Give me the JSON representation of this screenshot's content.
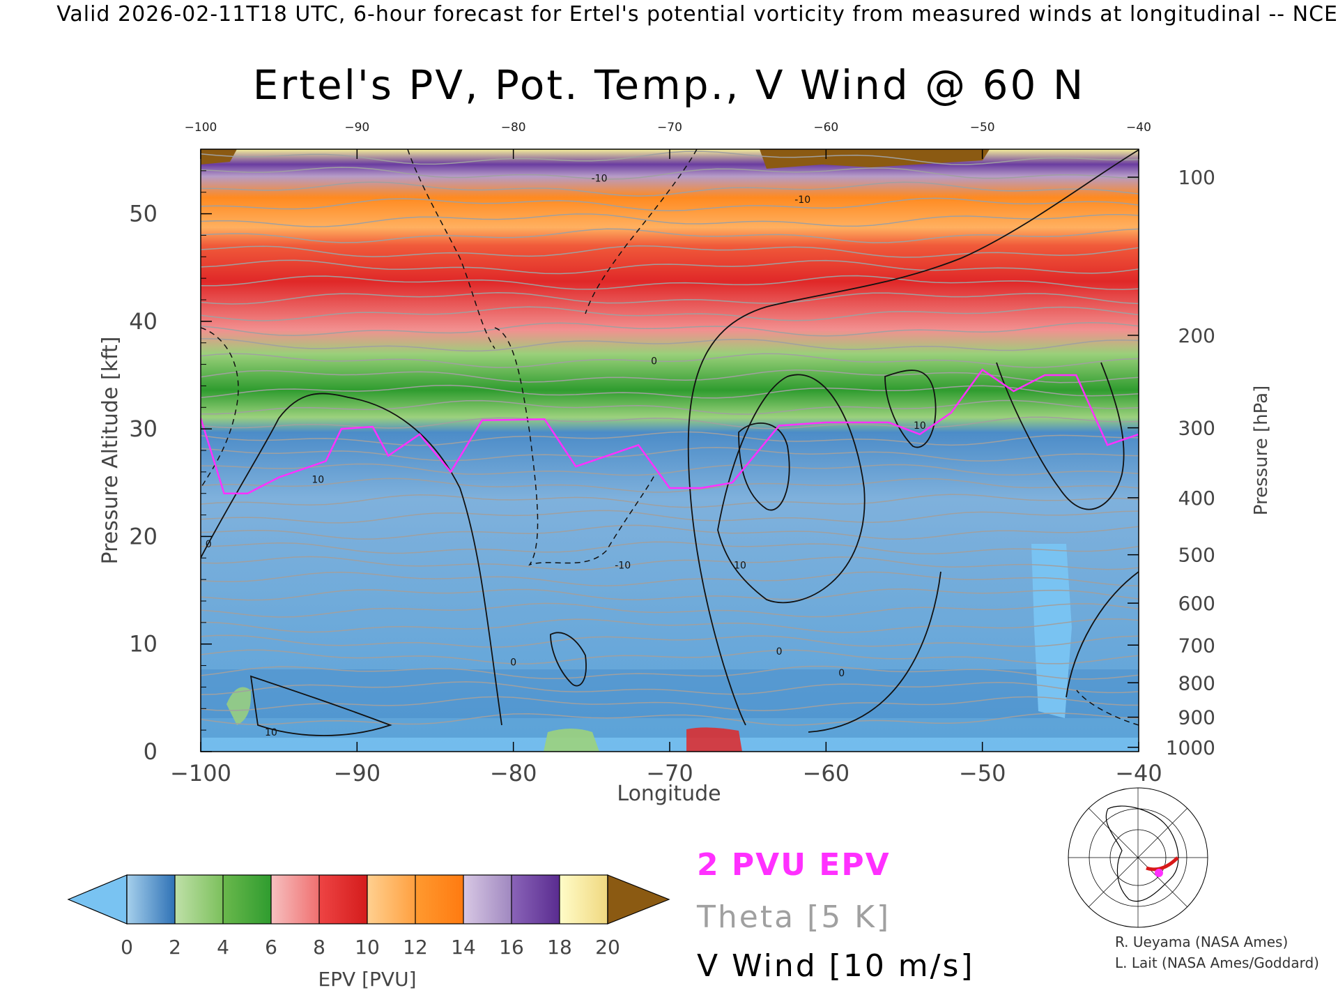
{
  "header": "Valid 2026-02-11T18 UTC, 6-hour forecast for Ertel's potential vorticity from measured winds at longitudinal -- NCE",
  "credits": [
    "R. Ueyama (NASA Ames)",
    "L. Lait (NASA Ames/Goddard)"
  ],
  "chart_data": {
    "type": "heatmap",
    "title": "Ertel's PV, Pot. Temp., V Wind @ 60 N",
    "xlabel": "Longitude",
    "ylabel_left": "Pressure Altitude [kft]",
    "ylabel_right": "Pressure [hPa]",
    "xlim": [
      -100,
      -40
    ],
    "ylim": [
      0,
      56
    ],
    "x_ticks": [
      -100,
      -90,
      -80,
      -70,
      -60,
      -50,
      -40
    ],
    "y_ticks": [
      0,
      10,
      20,
      30,
      40,
      50
    ],
    "pressure_ticks": [
      {
        "label": "100",
        "kft": 53.4
      },
      {
        "label": "200",
        "kft": 38.7
      },
      {
        "label": "300",
        "kft": 30.1
      },
      {
        "label": "400",
        "kft": 23.6
      },
      {
        "label": "500",
        "kft": 18.3
      },
      {
        "label": "600",
        "kft": 13.8
      },
      {
        "label": "700",
        "kft": 9.9
      },
      {
        "label": "800",
        "kft": 6.4
      },
      {
        "label": "900",
        "kft": 3.2
      },
      {
        "label": "1000",
        "kft": 0.4
      }
    ],
    "colorbar": {
      "label": "EPV [PVU]",
      "ticks": [
        0,
        2,
        4,
        6,
        8,
        10,
        12,
        14,
        16,
        18,
        20
      ],
      "colors": [
        "#2f72b6",
        "#9cd17d",
        "#2f9c2f",
        "#f08a8a",
        "#e02828",
        "#ffb060",
        "#ff7a10",
        "#b69cc8",
        "#6a3ca0",
        "#f6f09a"
      ],
      "under_color": "#79c3f2",
      "over_color": "#8b5a12"
    },
    "series": [
      {
        "name": "2 PVU EPV",
        "type": "line",
        "color": "#ff30ff",
        "x": [
          -100,
          -98.5,
          -97,
          -95,
          -92,
          -91,
          -89,
          -88,
          -86,
          -84,
          -82,
          -78,
          -76,
          -74,
          -72,
          -70,
          -68,
          -66,
          -63,
          -60,
          -56,
          -54,
          -52,
          -50,
          -48,
          -46,
          -44,
          -42,
          -40
        ],
        "y": [
          31,
          24,
          24,
          25.5,
          27,
          30,
          30.2,
          27.5,
          29.5,
          26,
          30.8,
          30.9,
          26.5,
          27.5,
          28.5,
          24.5,
          24.5,
          25,
          30.3,
          30.6,
          30.6,
          29.5,
          31.5,
          35.5,
          33.5,
          35,
          35,
          28.5,
          29.5
        ]
      },
      {
        "name": "Theta [5 K]",
        "type": "contours",
        "color": "#a0a0a0",
        "levels": [
          270,
          280,
          290,
          300,
          310,
          320,
          330,
          340,
          350,
          360,
          370,
          380,
          390,
          400,
          420
        ]
      },
      {
        "name": "V Wind [10 m/s]",
        "type": "contours",
        "color": "#000000",
        "contour_labels": [
          "0",
          "0",
          "0",
          "0",
          "0",
          "10",
          "10",
          "10",
          "10",
          "-10",
          "-10",
          "-10"
        ]
      }
    ],
    "legend": [
      "2 PVU EPV",
      "Theta [5 K]",
      "V Wind [10 m/s]"
    ],
    "legend_placement": "bottom-right",
    "inset_map": "north-polar map with 60 N cross-section line and location marker"
  }
}
